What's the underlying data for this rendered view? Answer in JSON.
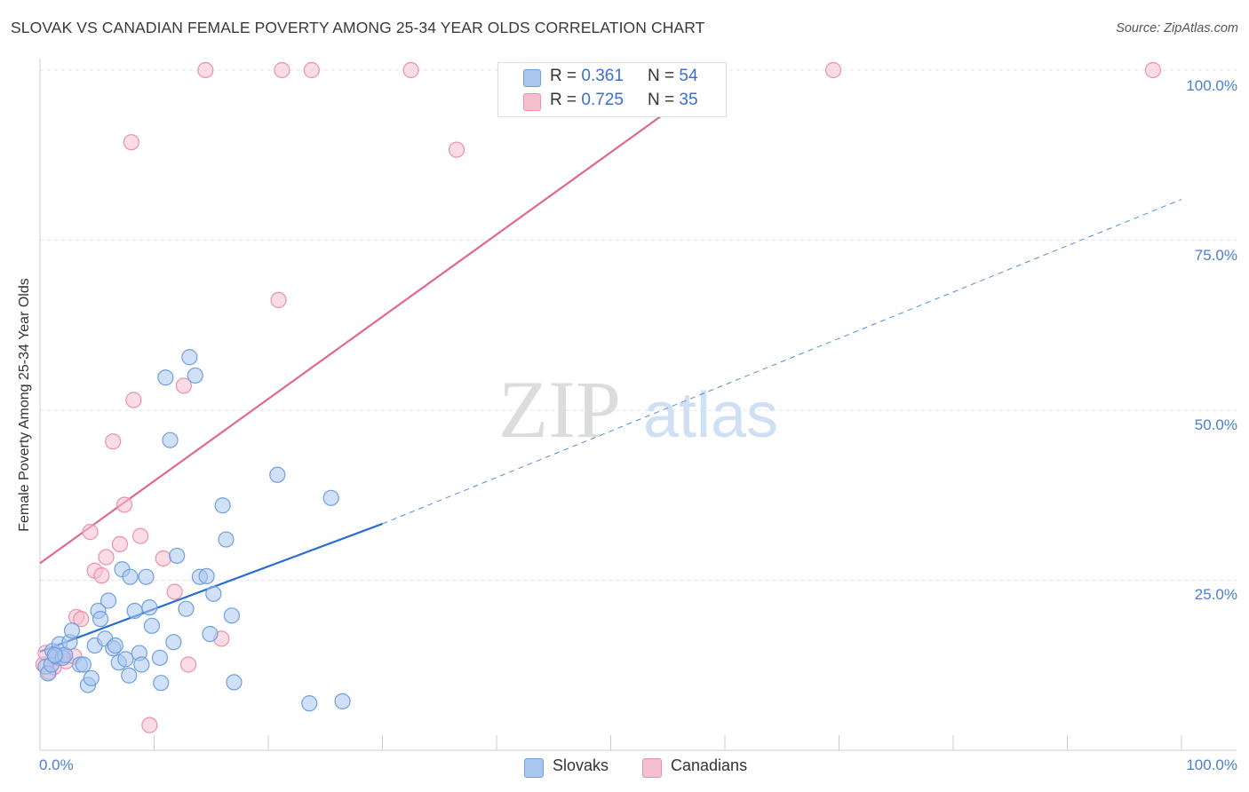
{
  "title": "SLOVAK VS CANADIAN FEMALE POVERTY AMONG 25-34 YEAR OLDS CORRELATION CHART",
  "source": "Source: ZipAtlas.com",
  "watermark": {
    "zip": "ZIP",
    "atlas": "atlas"
  },
  "colors": {
    "slovak_fill": "#a9c6ef",
    "slovak_stroke": "#6f9fe0",
    "slovak_line": "#2a6fd0",
    "canadian_fill": "#f5bfd0",
    "canadian_stroke": "#ec8fab",
    "canadian_line": "#e0688f",
    "tick_label": "#4a7fd0",
    "grid": "#e3e3e3"
  },
  "legend": {
    "slovaks": {
      "r_label": "R =",
      "r_value": "0.361",
      "n_label": "N =",
      "n_value": "54"
    },
    "canadians": {
      "r_label": "R =",
      "r_value": "0.725",
      "n_label": "N =",
      "n_value": "35"
    }
  },
  "bottom_legend": {
    "slovaks": "Slovaks",
    "canadians": "Canadians"
  },
  "chart_data": {
    "type": "scatter",
    "title": "SLOVAK VS CANADIAN FEMALE POVERTY AMONG 25-34 YEAR OLDS CORRELATION CHART",
    "xlabel": "",
    "ylabel": "Female Poverty Among 25-34 Year Olds",
    "xlim": [
      0,
      100
    ],
    "ylim": [
      0,
      100
    ],
    "x_tick_labels": [
      "0.0%",
      "100.0%"
    ],
    "y_tick_labels": [
      {
        "value": 25,
        "label": "25.0%"
      },
      {
        "value": 50,
        "label": "50.0%"
      },
      {
        "value": 75,
        "label": "75.0%"
      },
      {
        "value": 100,
        "label": "100.0%"
      }
    ],
    "grid": true,
    "legend_placement": "top-center",
    "series": [
      {
        "name": "Slovaks",
        "r": 0.361,
        "n": 54,
        "trend": {
          "x0": 0,
          "y0": 14.5,
          "x1": 30,
          "y1": 33.3,
          "dashed_to_x": 100,
          "dashed_to_y": 81.0
        },
        "points": [
          [
            0.5,
            12.3
          ],
          [
            0.7,
            11.3
          ],
          [
            1.0,
            12.6
          ],
          [
            1.1,
            14.6
          ],
          [
            1.4,
            13.8
          ],
          [
            1.7,
            15.6
          ],
          [
            2.0,
            13.6
          ],
          [
            2.2,
            14.0
          ],
          [
            2.6,
            15.9
          ],
          [
            2.8,
            17.6
          ],
          [
            3.5,
            12.6
          ],
          [
            3.8,
            12.6
          ],
          [
            4.2,
            9.6
          ],
          [
            4.5,
            10.6
          ],
          [
            4.8,
            15.4
          ],
          [
            5.1,
            20.5
          ],
          [
            5.3,
            19.3
          ],
          [
            5.7,
            16.4
          ],
          [
            6.0,
            22.0
          ],
          [
            6.4,
            15.0
          ],
          [
            6.6,
            15.4
          ],
          [
            6.9,
            12.9
          ],
          [
            7.2,
            26.6
          ],
          [
            7.5,
            13.4
          ],
          [
            7.8,
            11.0
          ],
          [
            7.9,
            25.5
          ],
          [
            8.3,
            20.5
          ],
          [
            8.7,
            14.3
          ],
          [
            8.9,
            12.6
          ],
          [
            9.3,
            25.5
          ],
          [
            9.6,
            21.0
          ],
          [
            9.8,
            18.3
          ],
          [
            10.5,
            13.6
          ],
          [
            10.6,
            9.9
          ],
          [
            11.0,
            54.8
          ],
          [
            11.4,
            45.6
          ],
          [
            11.7,
            15.9
          ],
          [
            12.0,
            28.6
          ],
          [
            12.8,
            20.8
          ],
          [
            13.1,
            57.8
          ],
          [
            13.6,
            55.1
          ],
          [
            14.0,
            25.5
          ],
          [
            14.6,
            25.6
          ],
          [
            14.9,
            17.1
          ],
          [
            15.2,
            23.0
          ],
          [
            16.0,
            36.0
          ],
          [
            16.3,
            31.0
          ],
          [
            16.8,
            19.8
          ],
          [
            17.0,
            10.0
          ],
          [
            20.8,
            40.5
          ],
          [
            23.6,
            6.9
          ],
          [
            25.5,
            37.1
          ],
          [
            26.5,
            7.2
          ],
          [
            1.3,
            14.0
          ]
        ]
      },
      {
        "name": "Canadians",
        "r": 0.725,
        "n": 35,
        "trend": {
          "x0": 0,
          "y0": 27.5,
          "x1": 60,
          "y1": 100.0
        },
        "points": [
          [
            0.3,
            12.6
          ],
          [
            0.5,
            14.3
          ],
          [
            0.8,
            11.5
          ],
          [
            1.2,
            12.2
          ],
          [
            1.5,
            13.6
          ],
          [
            2.0,
            14.0
          ],
          [
            2.3,
            13.1
          ],
          [
            3.0,
            13.8
          ],
          [
            3.2,
            19.6
          ],
          [
            3.6,
            19.3
          ],
          [
            4.4,
            32.1
          ],
          [
            4.8,
            26.4
          ],
          [
            5.4,
            25.7
          ],
          [
            5.8,
            28.4
          ],
          [
            6.4,
            45.4
          ],
          [
            7.0,
            30.3
          ],
          [
            7.4,
            36.1
          ],
          [
            8.0,
            89.4
          ],
          [
            8.2,
            51.5
          ],
          [
            8.8,
            31.5
          ],
          [
            9.6,
            3.7
          ],
          [
            10.8,
            28.2
          ],
          [
            11.8,
            23.3
          ],
          [
            12.6,
            53.6
          ],
          [
            13.0,
            12.6
          ],
          [
            14.5,
            100.0
          ],
          [
            15.9,
            16.4
          ],
          [
            20.9,
            66.2
          ],
          [
            21.2,
            100.0
          ],
          [
            23.8,
            100.0
          ],
          [
            32.5,
            100.0
          ],
          [
            36.5,
            88.3
          ],
          [
            42.0,
            100.0
          ],
          [
            69.5,
            100.0
          ],
          [
            97.5,
            100.0
          ]
        ]
      }
    ]
  }
}
